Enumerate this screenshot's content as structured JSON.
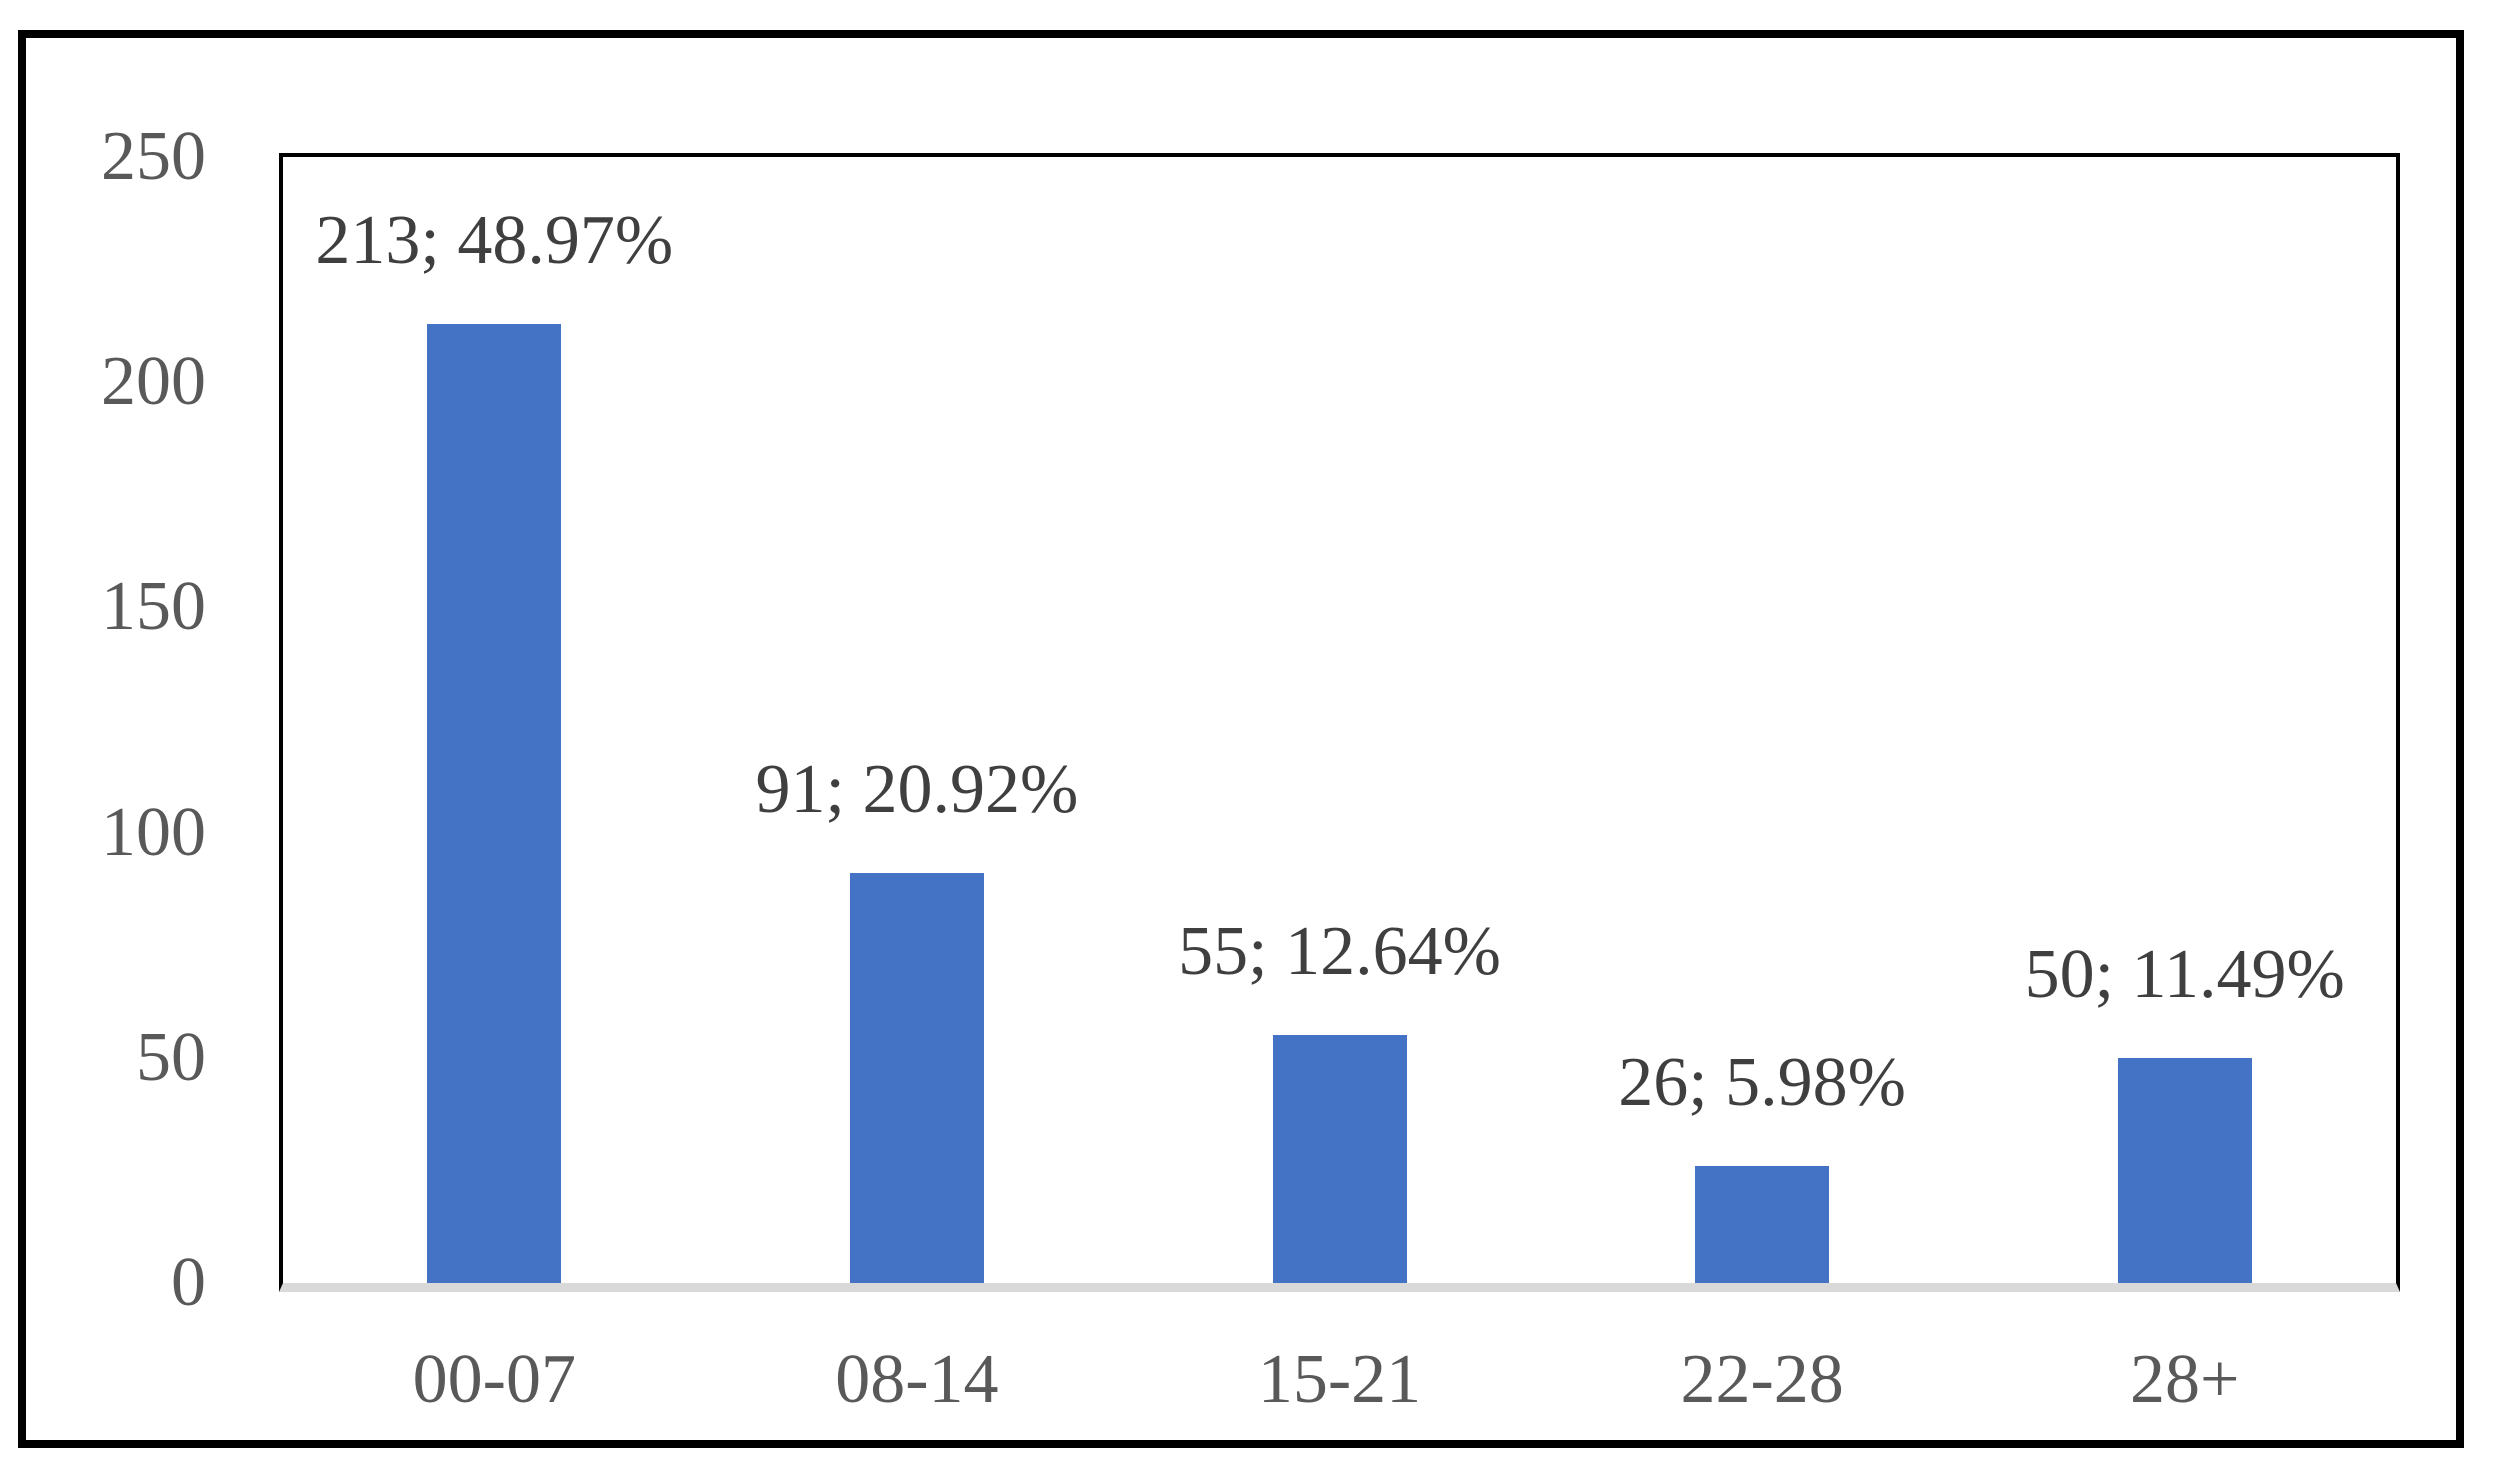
{
  "chart_data": {
    "type": "bar",
    "title": "",
    "xlabel": "",
    "ylabel": "",
    "categories": [
      "00-07",
      "08-14",
      "15-21",
      "22-28",
      "28+"
    ],
    "values": [
      213,
      91,
      55,
      26,
      50
    ],
    "percentages": [
      48.97,
      20.92,
      12.64,
      5.98,
      11.49
    ],
    "data_labels": [
      "213; 48.97%",
      "91; 20.92%",
      "55; 12.64%",
      "26; 5.98%",
      "50; 11.49%"
    ],
    "ylim": [
      0,
      250
    ],
    "y_ticks": [
      0,
      50,
      100,
      150,
      200,
      250
    ],
    "grid": "off",
    "legend": "none",
    "bar_color": "#4472C4",
    "baseline_color": "#D9D9D9",
    "axis_label_color": "#595959",
    "data_label_color": "#3F3F3F",
    "plot_border_color": "#000000",
    "frame_border_color": "#000000"
  }
}
